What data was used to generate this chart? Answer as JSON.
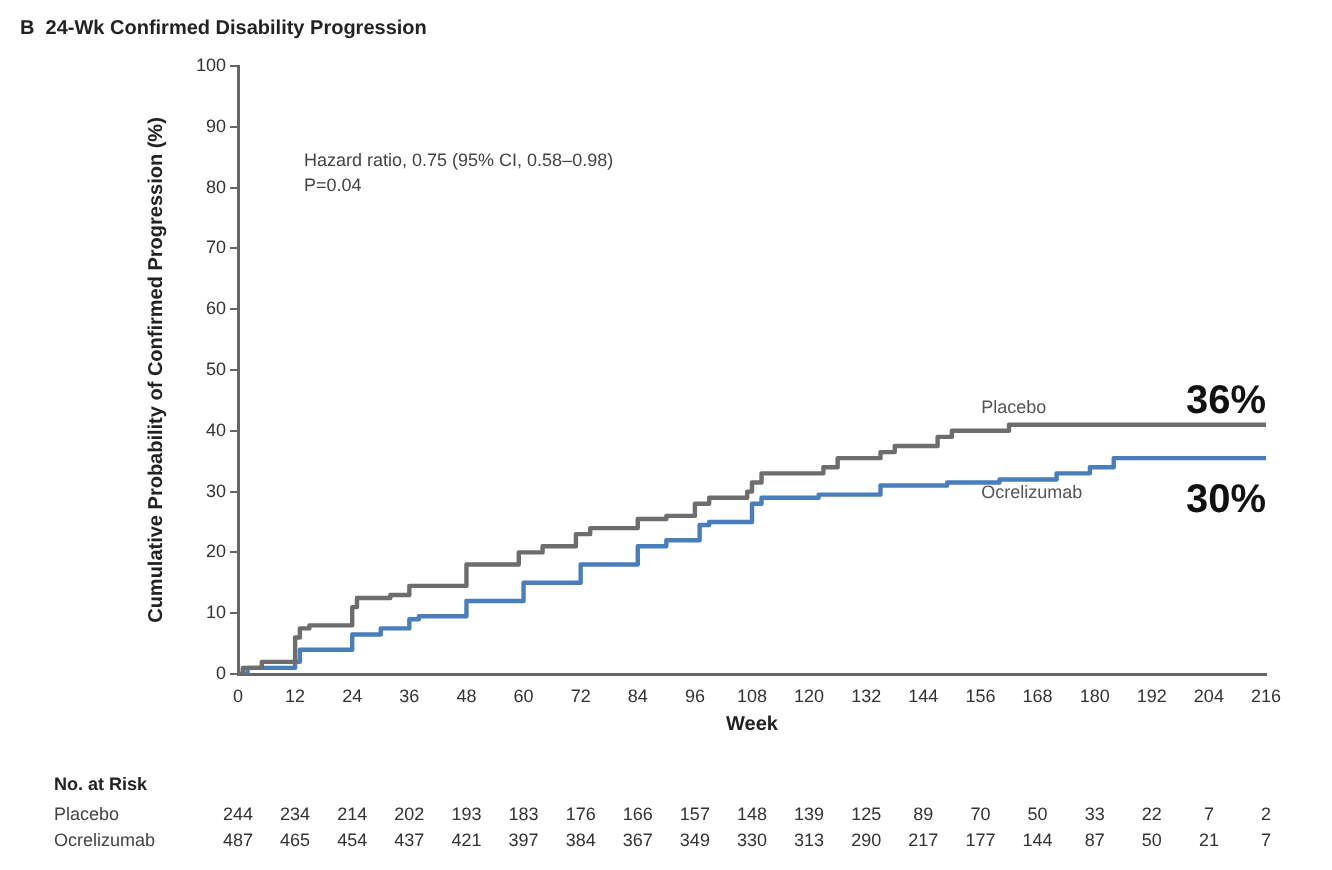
{
  "chart_data": {
    "type": "step",
    "title": "B  24-Wk Confirmed Disability Progression",
    "xlabel": "Week",
    "ylabel": "Cumulative Probability of Confirmed Progression (%)",
    "series": [
      {
        "name": "Placebo",
        "color": "#6d6d6d",
        "x": [
          0,
          1,
          5,
          12,
          13,
          15,
          24,
          25,
          32,
          36,
          48,
          59,
          64,
          71,
          74,
          84,
          90,
          96,
          99,
          107,
          108,
          110,
          123,
          126,
          135,
          138,
          147,
          150,
          162,
          216
        ],
        "values": [
          0,
          1,
          2,
          6,
          7.5,
          8,
          11,
          12.5,
          13,
          14.5,
          18,
          20,
          21,
          23,
          24,
          25.5,
          26,
          28,
          29,
          30,
          31.5,
          33,
          34,
          35.5,
          36.5,
          37.5,
          39,
          40,
          41,
          41
        ]
      },
      {
        "name": "Ocrelizumab",
        "color": "#4a7ebb",
        "x": [
          0,
          2,
          12,
          13,
          24,
          30,
          36,
          38,
          48,
          60,
          72,
          84,
          90,
          97,
          99,
          108,
          110,
          122,
          135,
          149,
          160,
          172,
          179,
          184,
          216
        ],
        "values": [
          0,
          1,
          2,
          4,
          6.5,
          7.5,
          9,
          9.5,
          12,
          15,
          18,
          21,
          22,
          24.5,
          25,
          28,
          29,
          29.5,
          31,
          31.5,
          32,
          33,
          34,
          35.5,
          35.5
        ]
      }
    ],
    "xlim": [
      0,
      216
    ],
    "xticks": [
      0,
      12,
      24,
      36,
      48,
      60,
      72,
      84,
      96,
      108,
      120,
      132,
      144,
      156,
      168,
      180,
      192,
      204,
      216
    ],
    "ylim": [
      0,
      100
    ],
    "yticks": [
      0,
      10,
      20,
      30,
      40,
      50,
      60,
      70,
      80,
      90,
      100
    ],
    "legend": false,
    "line_style": "solid",
    "annotations": [
      "Hazard ratio, 0.75 (95% CI, 0.58–0.98)",
      "P=0.04",
      "36%",
      "30%",
      "No. at Risk",
      "244 234 214 202 193 183 176 166 157 148 139 125 89 70 50 33 22 7 2",
      "487 465 454 437 421 397 384 367 349 330 313 290 217 177 144 87 50 21 7"
    ]
  }
}
